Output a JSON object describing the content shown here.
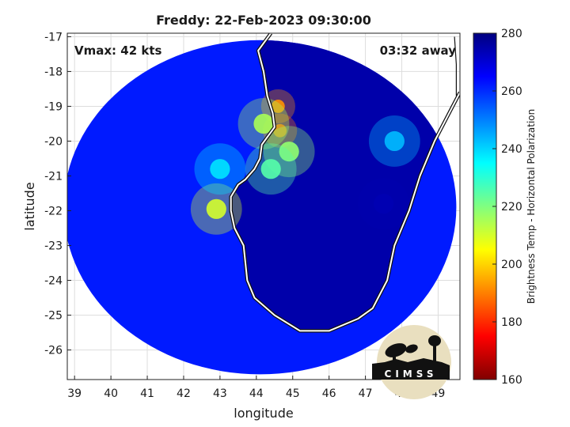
{
  "chart_data": {
    "type": "heatmap",
    "title": "Freddy: 22-Feb-2023 09:30:00",
    "xlabel": "longitude",
    "ylabel": "latitude",
    "xlim": [
      38.8,
      49.6
    ],
    "ylim": [
      -26.85,
      -16.9
    ],
    "x_ticks": [
      39,
      40,
      41,
      42,
      43,
      44,
      45,
      46,
      47,
      48,
      49
    ],
    "y_ticks": [
      -17,
      -18,
      -19,
      -20,
      -21,
      -22,
      -23,
      -24,
      -25,
      -26
    ],
    "grid": true,
    "annotations": {
      "vmax": "Vmax: 42 kts",
      "away": "03:32 away"
    },
    "colorbar": {
      "label": "Brightness Temp - Horizontal Polarization",
      "range": [
        160,
        280
      ],
      "ticks": [
        160,
        180,
        200,
        220,
        240,
        260,
        280
      ],
      "colors": [
        "#800000",
        "#ff0000",
        "#ff8000",
        "#ffff00",
        "#80ff80",
        "#00ffff",
        "#0080ff",
        "#0000ff",
        "#000080"
      ]
    },
    "swath": {
      "center": [
        44.1,
        -21.9
      ],
      "radius_lon": 5.4,
      "radius_lat": 4.8,
      "base_value": 262
    },
    "features": [
      {
        "lon": 44.6,
        "lat": -19.0,
        "value": 192
      },
      {
        "lon": 44.65,
        "lat": -19.7,
        "value": 188
      },
      {
        "lon": 44.2,
        "lat": -19.5,
        "value": 215
      },
      {
        "lon": 44.9,
        "lat": -20.3,
        "value": 218
      },
      {
        "lon": 44.4,
        "lat": -20.8,
        "value": 225
      },
      {
        "lon": 42.9,
        "lat": -21.95,
        "value": 210
      },
      {
        "lon": 43.0,
        "lat": -20.8,
        "value": 238
      },
      {
        "lon": 47.5,
        "lat": -21.8,
        "value": 274
      },
      {
        "lon": 47.8,
        "lat": -20.0,
        "value": 243
      }
    ],
    "coastline": [
      [
        44.4,
        -16.9
      ],
      [
        44.05,
        -17.4
      ],
      [
        44.2,
        -18.0
      ],
      [
        44.3,
        -18.7
      ],
      [
        44.45,
        -19.2
      ],
      [
        44.5,
        -19.6
      ],
      [
        44.15,
        -20.1
      ],
      [
        44.1,
        -20.5
      ],
      [
        43.95,
        -20.8
      ],
      [
        43.7,
        -21.1
      ],
      [
        43.5,
        -21.25
      ],
      [
        43.3,
        -21.6
      ],
      [
        43.3,
        -22.0
      ],
      [
        43.4,
        -22.5
      ],
      [
        43.65,
        -23.0
      ],
      [
        43.7,
        -23.5
      ],
      [
        43.75,
        -24.0
      ],
      [
        43.95,
        -24.5
      ],
      [
        44.5,
        -25.0
      ],
      [
        45.2,
        -25.45
      ],
      [
        46.0,
        -25.45
      ],
      [
        46.8,
        -25.1
      ],
      [
        47.2,
        -24.8
      ],
      [
        47.6,
        -24.0
      ],
      [
        47.8,
        -23.0
      ],
      [
        48.2,
        -22.0
      ],
      [
        48.5,
        -21.0
      ],
      [
        48.9,
        -20.0
      ],
      [
        49.4,
        -19.0
      ],
      [
        49.6,
        -18.6
      ]
    ],
    "coast_segment": [
      [
        49.5,
        -18.7
      ],
      [
        49.5,
        -17.8
      ],
      [
        49.45,
        -17.0
      ]
    ]
  },
  "logo": {
    "text": "CIMSS"
  }
}
